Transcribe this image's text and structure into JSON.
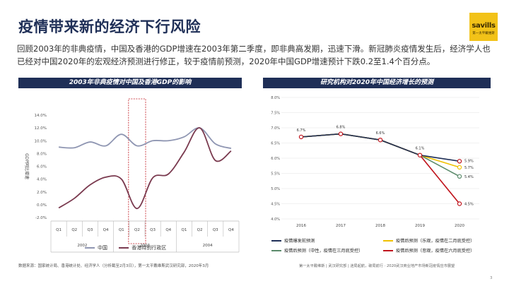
{
  "page": {
    "title": "疫情带来新的经济下行风险",
    "intro": "回顾2003年的非典疫情，中国及香港的GDP增速在2003年第二季度，即非典高发期，迅速下滑。新冠肺炎疫情发生后，经济学人也已经对中国2020年的宏观经济预测进行修正，较于疫情前预测，2020年中国GDP增速预计下跌0.2至1.4个百分点。",
    "left_header": "2003年非典疫情对中国及香港GDP的影响",
    "right_header": "研究机构对2020年中国经济增长的预测",
    "source_left": "数据来源：国家统计局、香港统计处、经济学人（分析截至2月3日），第一太平戴维斯武汉研究部，2020年3月",
    "footer_right": "第一太平戴维斯 | 武汉研究部 | 迷局起航，破局前行 · 2020武汉商业地产市场新冠疫情应市展望",
    "page_number": "3"
  },
  "logo": {
    "word": "savills",
    "sub": "第一太平戴维斯",
    "color": "#f2c218"
  },
  "chart_data": [
    {
      "type": "line",
      "title": "2003年非典疫情对中国及香港GDP的影响",
      "ylabel": "GDP同比增速",
      "ylim": [
        -2.0,
        14.0
      ],
      "y_ticks": [
        "14.0%",
        "12.0%",
        "10.0%",
        "8.0%",
        "6.0%",
        "4.0%",
        "2.0%",
        "0.0%",
        "-2.0%"
      ],
      "x_quarters": [
        "Q1",
        "Q2",
        "Q3",
        "Q4",
        "Q1",
        "Q2",
        "Q3",
        "Q4",
        "Q1",
        "Q2",
        "Q3",
        "Q4"
      ],
      "x_years": [
        "2002",
        "2003",
        "2004"
      ],
      "highlight": "2003 Q2",
      "grid": false,
      "legend_position": "bottom",
      "series": [
        {
          "name": "中国",
          "color": "#8f96b2",
          "values": [
            9.0,
            8.9,
            9.8,
            9.2,
            11.0,
            9.2,
            10.0,
            10.0,
            10.6,
            12.0,
            9.5,
            8.8
          ]
        },
        {
          "name": "香港特别行政区",
          "color": "#7a3a4f",
          "values": [
            -0.5,
            1.0,
            3.1,
            4.3,
            4.0,
            -0.6,
            4.2,
            4.8,
            8.2,
            12.0,
            6.9,
            8.4
          ]
        }
      ]
    },
    {
      "type": "line",
      "title": "研究机构对2020年中国经济增长的预测",
      "ylim": [
        4.0,
        8.0
      ],
      "y_ticks": [
        "8.0%",
        "7.5%",
        "7.0%",
        "6.5%",
        "6.0%",
        "5.5%",
        "5.0%",
        "4.5%",
        "4.0%"
      ],
      "x": [
        "2016",
        "2017",
        "2018",
        "2019",
        "2020"
      ],
      "grid": true,
      "legend_position": "bottom",
      "series": [
        {
          "name": "疫情爆发前预测",
          "color": "#1f2f57",
          "values": [
            6.7,
            6.8,
            6.6,
            6.1,
            5.9
          ],
          "labels": [
            "6.7%",
            "6.8%",
            "6.6%",
            "6.1%",
            "5.9%"
          ]
        },
        {
          "name": "疫情后预测（乐观，疫情在二月底受控）",
          "color": "#f0c000",
          "values": [
            6.7,
            6.8,
            6.6,
            6.1,
            5.7
          ],
          "end_label": "5.7%"
        },
        {
          "name": "疫情后预测（中性，疫情在三月底受控）",
          "color": "#5a8a6a",
          "values": [
            6.7,
            6.8,
            6.6,
            6.1,
            5.4
          ],
          "end_label": "5.4%"
        },
        {
          "name": "疫情后预测（悲观，疫情在六月底受控）",
          "color": "#c0141c",
          "values": [
            6.7,
            6.8,
            6.6,
            6.1,
            4.5
          ],
          "end_label": "4.5%"
        }
      ]
    }
  ]
}
